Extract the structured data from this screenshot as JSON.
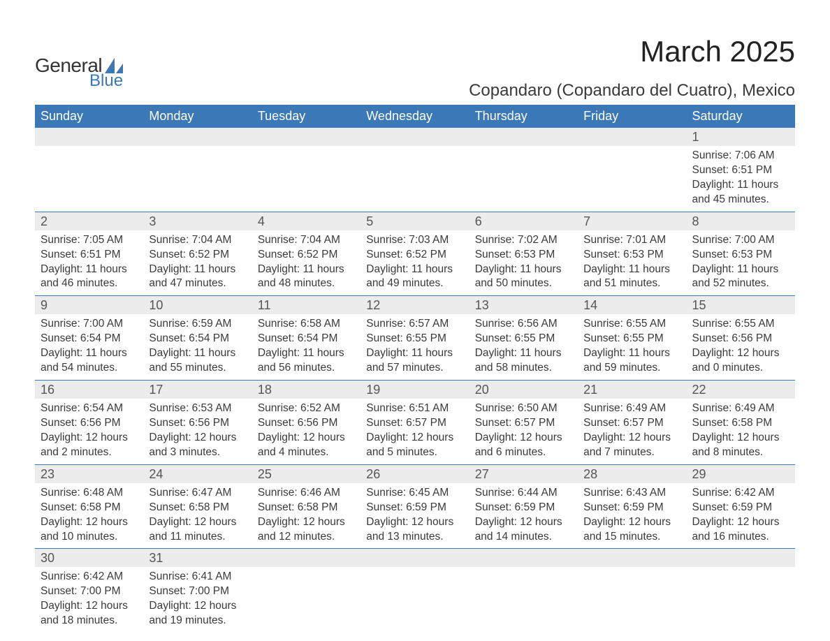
{
  "brand": {
    "general": "General",
    "blue": "Blue",
    "sail_color": "#3b78b8"
  },
  "title": "March 2025",
  "location": "Copandaro (Copandaro del Cuatro), Mexico",
  "colors": {
    "header_bg": "#3b78b8",
    "header_text": "#ffffff",
    "band_bg": "#ececec",
    "border": "#3b78b8",
    "text": "#3a3a3a"
  },
  "day_headers": [
    "Sunday",
    "Monday",
    "Tuesday",
    "Wednesday",
    "Thursday",
    "Friday",
    "Saturday"
  ],
  "weeks": [
    [
      {
        "n": "",
        "sr": "",
        "ss": "",
        "dl": ""
      },
      {
        "n": "",
        "sr": "",
        "ss": "",
        "dl": ""
      },
      {
        "n": "",
        "sr": "",
        "ss": "",
        "dl": ""
      },
      {
        "n": "",
        "sr": "",
        "ss": "",
        "dl": ""
      },
      {
        "n": "",
        "sr": "",
        "ss": "",
        "dl": ""
      },
      {
        "n": "",
        "sr": "",
        "ss": "",
        "dl": ""
      },
      {
        "n": "1",
        "sr": "Sunrise: 7:06 AM",
        "ss": "Sunset: 6:51 PM",
        "dl": "Daylight: 11 hours and 45 minutes."
      }
    ],
    [
      {
        "n": "2",
        "sr": "Sunrise: 7:05 AM",
        "ss": "Sunset: 6:51 PM",
        "dl": "Daylight: 11 hours and 46 minutes."
      },
      {
        "n": "3",
        "sr": "Sunrise: 7:04 AM",
        "ss": "Sunset: 6:52 PM",
        "dl": "Daylight: 11 hours and 47 minutes."
      },
      {
        "n": "4",
        "sr": "Sunrise: 7:04 AM",
        "ss": "Sunset: 6:52 PM",
        "dl": "Daylight: 11 hours and 48 minutes."
      },
      {
        "n": "5",
        "sr": "Sunrise: 7:03 AM",
        "ss": "Sunset: 6:52 PM",
        "dl": "Daylight: 11 hours and 49 minutes."
      },
      {
        "n": "6",
        "sr": "Sunrise: 7:02 AM",
        "ss": "Sunset: 6:53 PM",
        "dl": "Daylight: 11 hours and 50 minutes."
      },
      {
        "n": "7",
        "sr": "Sunrise: 7:01 AM",
        "ss": "Sunset: 6:53 PM",
        "dl": "Daylight: 11 hours and 51 minutes."
      },
      {
        "n": "8",
        "sr": "Sunrise: 7:00 AM",
        "ss": "Sunset: 6:53 PM",
        "dl": "Daylight: 11 hours and 52 minutes."
      }
    ],
    [
      {
        "n": "9",
        "sr": "Sunrise: 7:00 AM",
        "ss": "Sunset: 6:54 PM",
        "dl": "Daylight: 11 hours and 54 minutes."
      },
      {
        "n": "10",
        "sr": "Sunrise: 6:59 AM",
        "ss": "Sunset: 6:54 PM",
        "dl": "Daylight: 11 hours and 55 minutes."
      },
      {
        "n": "11",
        "sr": "Sunrise: 6:58 AM",
        "ss": "Sunset: 6:54 PM",
        "dl": "Daylight: 11 hours and 56 minutes."
      },
      {
        "n": "12",
        "sr": "Sunrise: 6:57 AM",
        "ss": "Sunset: 6:55 PM",
        "dl": "Daylight: 11 hours and 57 minutes."
      },
      {
        "n": "13",
        "sr": "Sunrise: 6:56 AM",
        "ss": "Sunset: 6:55 PM",
        "dl": "Daylight: 11 hours and 58 minutes."
      },
      {
        "n": "14",
        "sr": "Sunrise: 6:55 AM",
        "ss": "Sunset: 6:55 PM",
        "dl": "Daylight: 11 hours and 59 minutes."
      },
      {
        "n": "15",
        "sr": "Sunrise: 6:55 AM",
        "ss": "Sunset: 6:56 PM",
        "dl": "Daylight: 12 hours and 0 minutes."
      }
    ],
    [
      {
        "n": "16",
        "sr": "Sunrise: 6:54 AM",
        "ss": "Sunset: 6:56 PM",
        "dl": "Daylight: 12 hours and 2 minutes."
      },
      {
        "n": "17",
        "sr": "Sunrise: 6:53 AM",
        "ss": "Sunset: 6:56 PM",
        "dl": "Daylight: 12 hours and 3 minutes."
      },
      {
        "n": "18",
        "sr": "Sunrise: 6:52 AM",
        "ss": "Sunset: 6:56 PM",
        "dl": "Daylight: 12 hours and 4 minutes."
      },
      {
        "n": "19",
        "sr": "Sunrise: 6:51 AM",
        "ss": "Sunset: 6:57 PM",
        "dl": "Daylight: 12 hours and 5 minutes."
      },
      {
        "n": "20",
        "sr": "Sunrise: 6:50 AM",
        "ss": "Sunset: 6:57 PM",
        "dl": "Daylight: 12 hours and 6 minutes."
      },
      {
        "n": "21",
        "sr": "Sunrise: 6:49 AM",
        "ss": "Sunset: 6:57 PM",
        "dl": "Daylight: 12 hours and 7 minutes."
      },
      {
        "n": "22",
        "sr": "Sunrise: 6:49 AM",
        "ss": "Sunset: 6:58 PM",
        "dl": "Daylight: 12 hours and 8 minutes."
      }
    ],
    [
      {
        "n": "23",
        "sr": "Sunrise: 6:48 AM",
        "ss": "Sunset: 6:58 PM",
        "dl": "Daylight: 12 hours and 10 minutes."
      },
      {
        "n": "24",
        "sr": "Sunrise: 6:47 AM",
        "ss": "Sunset: 6:58 PM",
        "dl": "Daylight: 12 hours and 11 minutes."
      },
      {
        "n": "25",
        "sr": "Sunrise: 6:46 AM",
        "ss": "Sunset: 6:58 PM",
        "dl": "Daylight: 12 hours and 12 minutes."
      },
      {
        "n": "26",
        "sr": "Sunrise: 6:45 AM",
        "ss": "Sunset: 6:59 PM",
        "dl": "Daylight: 12 hours and 13 minutes."
      },
      {
        "n": "27",
        "sr": "Sunrise: 6:44 AM",
        "ss": "Sunset: 6:59 PM",
        "dl": "Daylight: 12 hours and 14 minutes."
      },
      {
        "n": "28",
        "sr": "Sunrise: 6:43 AM",
        "ss": "Sunset: 6:59 PM",
        "dl": "Daylight: 12 hours and 15 minutes."
      },
      {
        "n": "29",
        "sr": "Sunrise: 6:42 AM",
        "ss": "Sunset: 6:59 PM",
        "dl": "Daylight: 12 hours and 16 minutes."
      }
    ],
    [
      {
        "n": "30",
        "sr": "Sunrise: 6:42 AM",
        "ss": "Sunset: 7:00 PM",
        "dl": "Daylight: 12 hours and 18 minutes."
      },
      {
        "n": "31",
        "sr": "Sunrise: 6:41 AM",
        "ss": "Sunset: 7:00 PM",
        "dl": "Daylight: 12 hours and 19 minutes."
      },
      {
        "n": "",
        "sr": "",
        "ss": "",
        "dl": ""
      },
      {
        "n": "",
        "sr": "",
        "ss": "",
        "dl": ""
      },
      {
        "n": "",
        "sr": "",
        "ss": "",
        "dl": ""
      },
      {
        "n": "",
        "sr": "",
        "ss": "",
        "dl": ""
      },
      {
        "n": "",
        "sr": "",
        "ss": "",
        "dl": ""
      }
    ]
  ]
}
